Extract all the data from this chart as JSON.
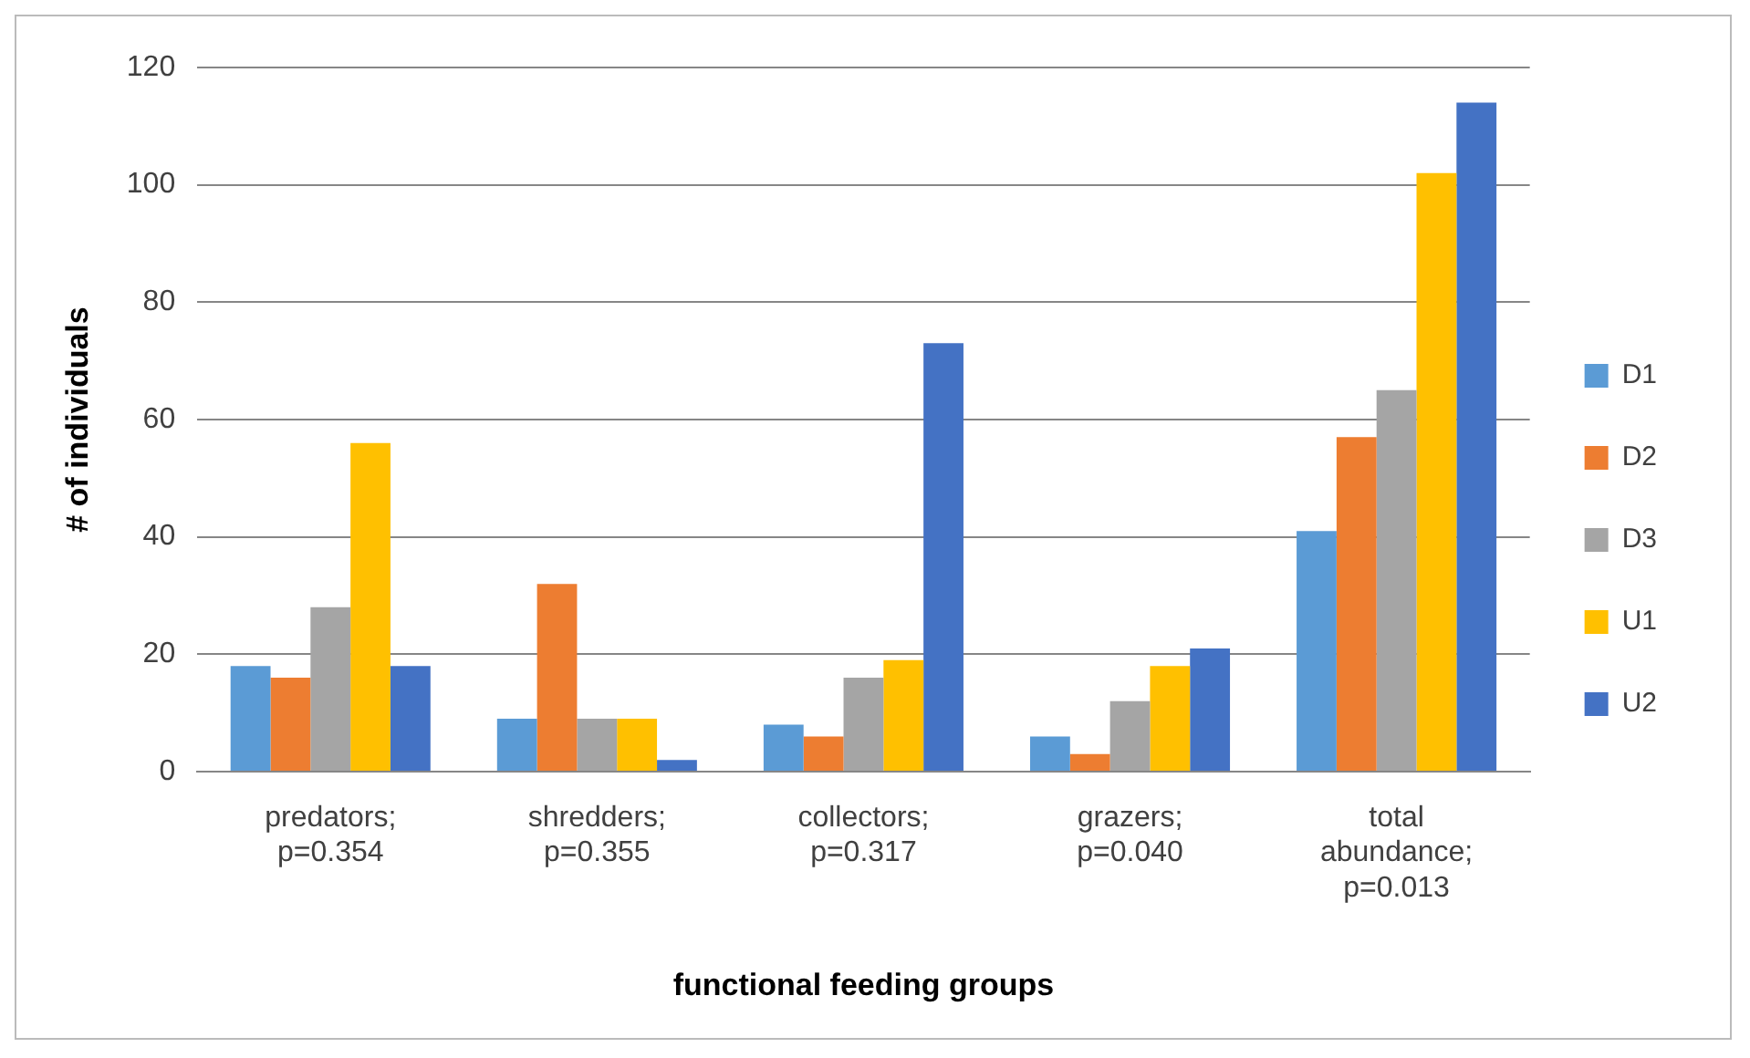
{
  "chart_data": {
    "type": "bar",
    "xlabel": "functional feeding groups",
    "ylabel": "# of individuals",
    "categories": [
      "predators; p=0.354",
      "shredders; p=0.355",
      "collectors; p=0.317",
      "grazers; p=0.040",
      "total abundance; p=0.013"
    ],
    "series": [
      {
        "name": "D1",
        "color": "#5b9bd5",
        "values": [
          18,
          9,
          8,
          6,
          41
        ]
      },
      {
        "name": "D2",
        "color": "#ed7d31",
        "values": [
          16,
          32,
          6,
          3,
          57
        ]
      },
      {
        "name": "D3",
        "color": "#a5a5a5",
        "values": [
          28,
          9,
          16,
          12,
          65
        ]
      },
      {
        "name": "U1",
        "color": "#ffc000",
        "values": [
          56,
          9,
          19,
          18,
          102
        ]
      },
      {
        "name": "U2",
        "color": "#4472c4",
        "values": [
          18,
          2,
          73,
          21,
          114
        ]
      }
    ],
    "ylim": [
      0,
      120
    ],
    "yticks": [
      0,
      20,
      40,
      60,
      80,
      100,
      120
    ],
    "grid": "y",
    "legend": "right"
  }
}
